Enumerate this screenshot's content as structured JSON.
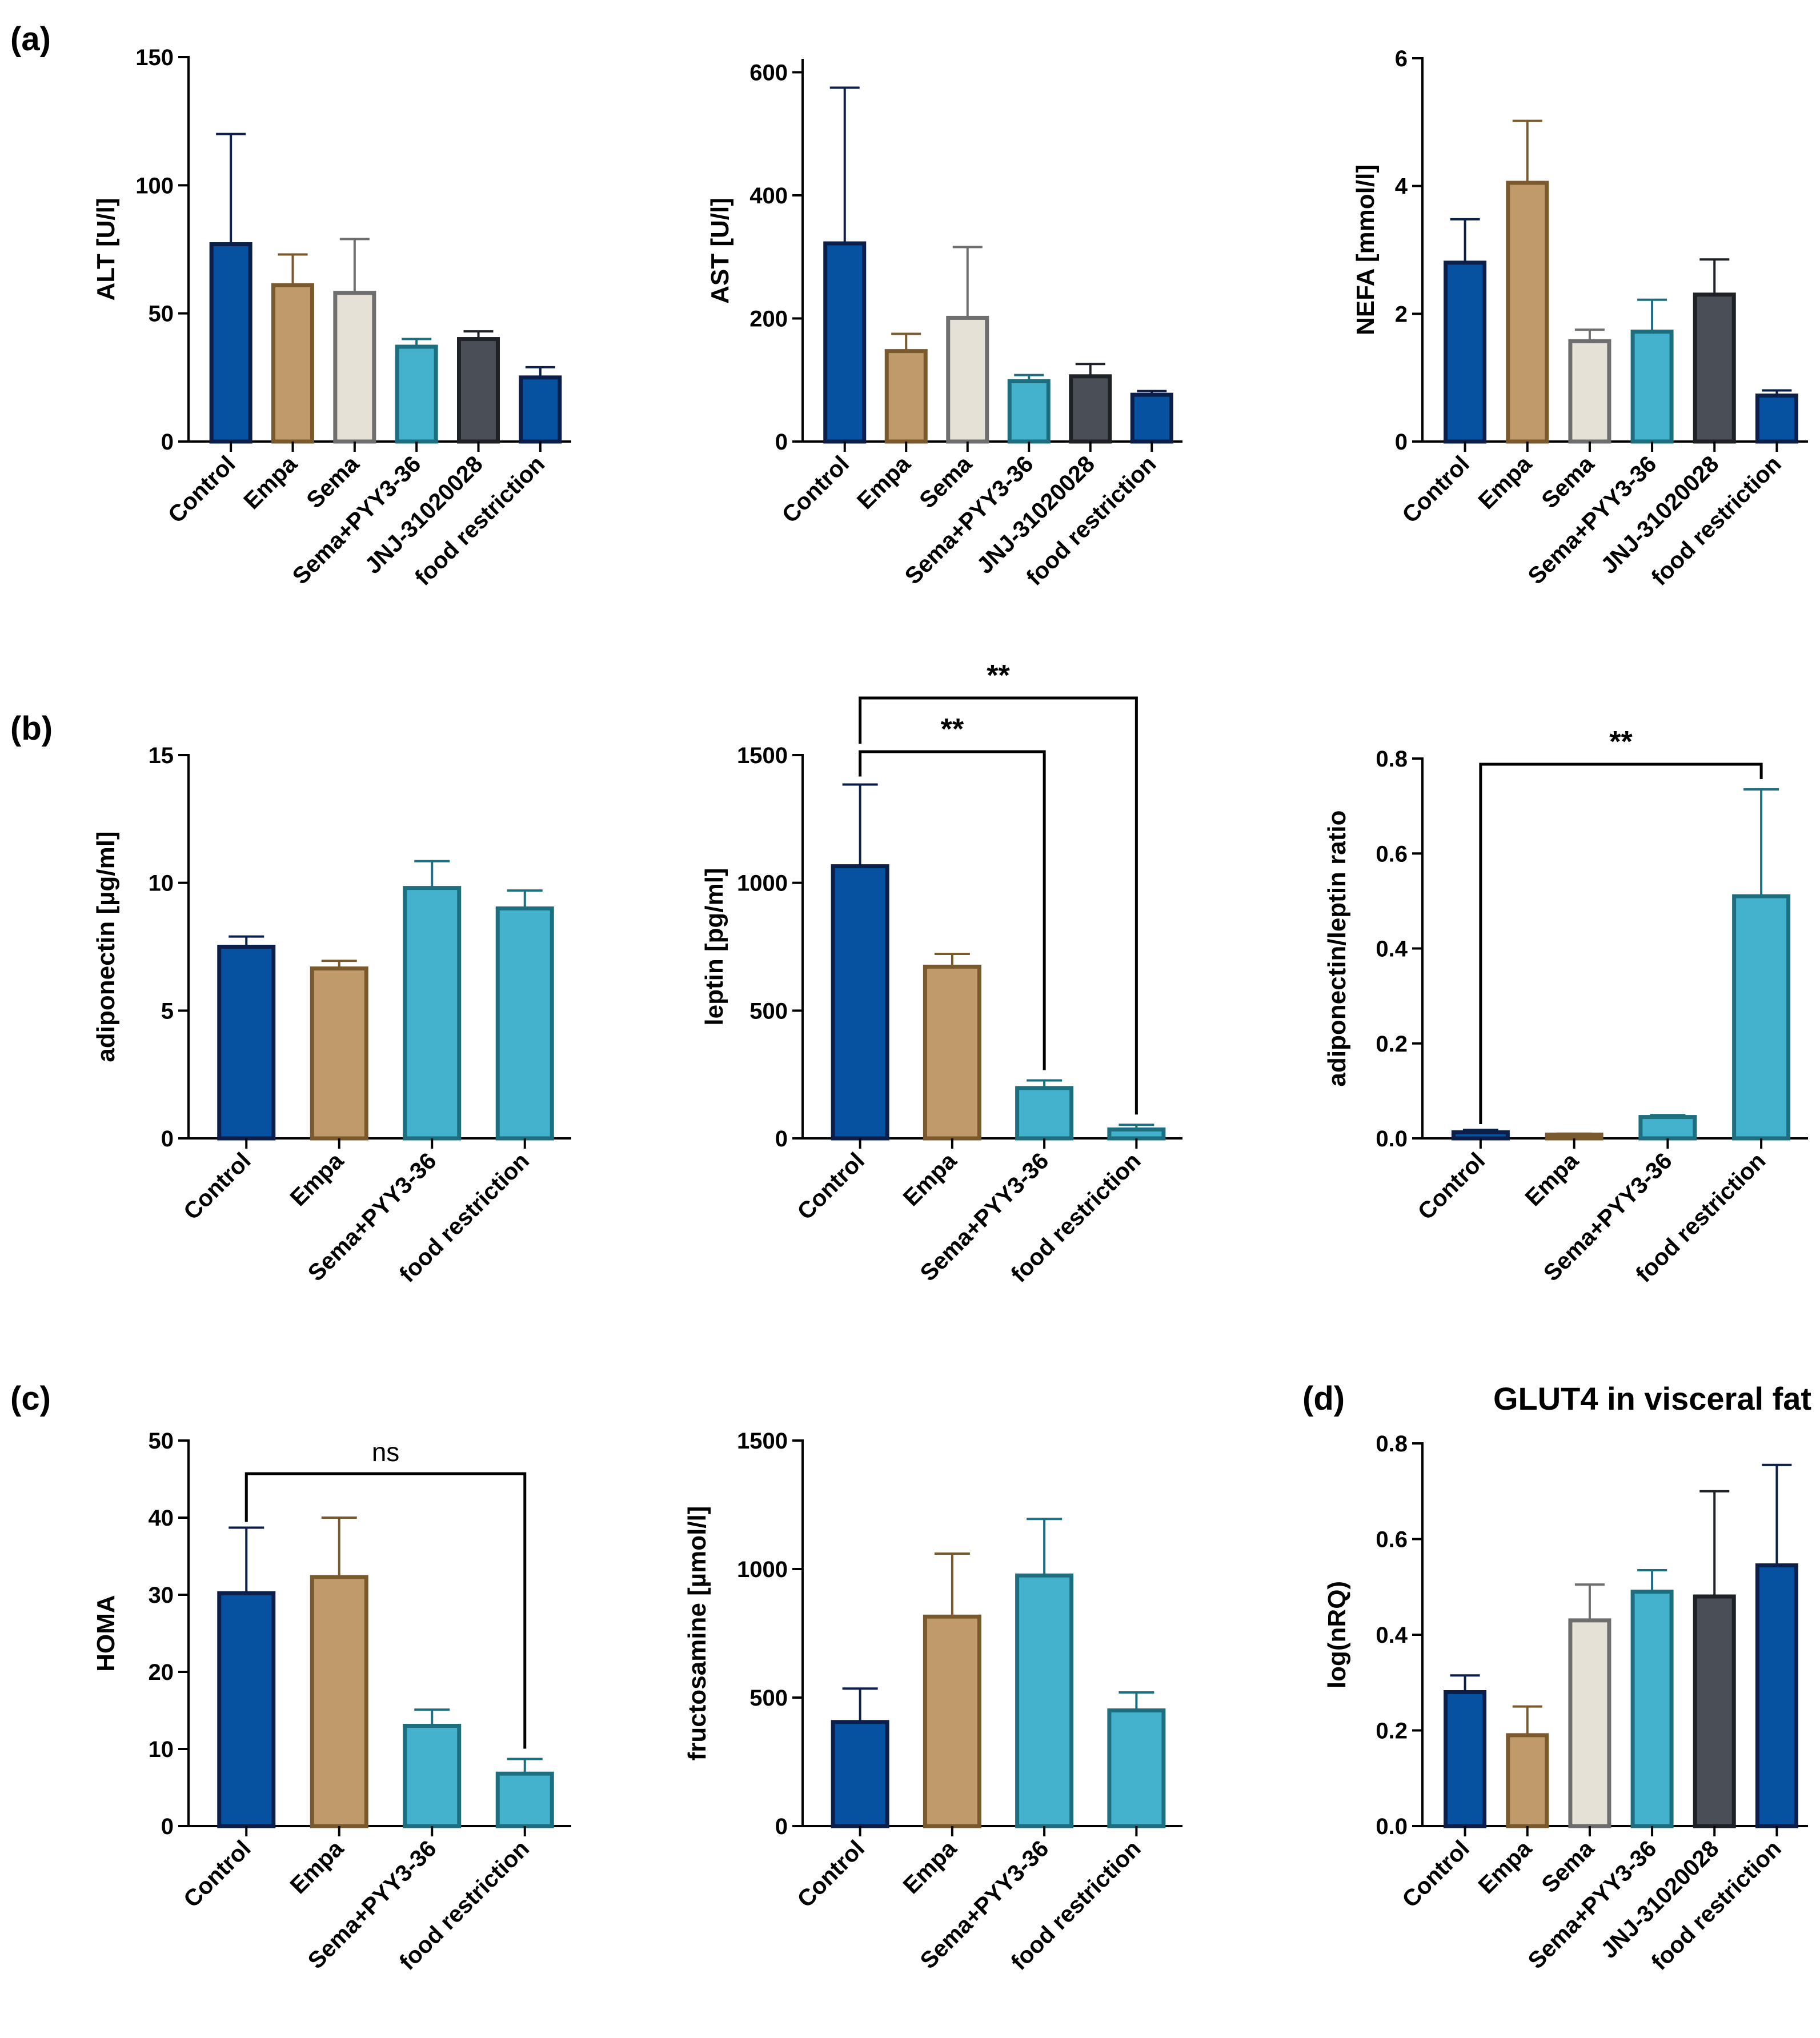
{
  "colors": {
    "Control": {
      "fill": "#0652a0",
      "stroke": "#0b1f4a"
    },
    "Empa": {
      "fill": "#c19a6b",
      "stroke": "#7a5a2c"
    },
    "Sema": {
      "fill": "#e6e1d6",
      "stroke": "#6e6e6e"
    },
    "Sema+PYY3-36": {
      "fill": "#44b2cc",
      "stroke": "#1d6f80"
    },
    "JNJ-31020028": {
      "fill": "#4a4f57",
      "stroke": "#1e2227"
    },
    "food restriction": {
      "fill": "#0652a0",
      "stroke": "#0b1f4a"
    },
    "food restriction (b,c)": {
      "fill": "#44b2cc",
      "stroke": "#1d6f80"
    }
  },
  "chart_data": [
    {
      "id": "alt",
      "panel_label": "(a)",
      "type": "bar",
      "title": "",
      "ylabel": "ALT [U/l]",
      "ylim": [
        0,
        150
      ],
      "yticks": [
        "0",
        "50",
        "100",
        "150"
      ],
      "categories": [
        "Control",
        "Empa",
        "Sema",
        "Sema+PYY3-36",
        "JNJ-31020028",
        "food restriction"
      ],
      "values": [
        77,
        61,
        58,
        37,
        40,
        25
      ],
      "errors": [
        43,
        12,
        21,
        3,
        3,
        4
      ],
      "significance": []
    },
    {
      "id": "ast",
      "panel_label": "",
      "type": "bar",
      "title": "",
      "ylabel": "AST [U/l]",
      "ylim": [
        0,
        620
      ],
      "yticks": [
        "0",
        "200",
        "400",
        "600"
      ],
      "categories": [
        "Control",
        "Empa",
        "Sema",
        "Sema+PYY3-36",
        "JNJ-31020028",
        "food restriction"
      ],
      "values": [
        322,
        147,
        201,
        98,
        106,
        76
      ],
      "errors": [
        253,
        28,
        115,
        10,
        20,
        6
      ],
      "significance": []
    },
    {
      "id": "nefa",
      "panel_label": "",
      "type": "bar",
      "title": "",
      "ylabel": "NEFA [mmol/l]",
      "ylim": [
        0,
        6
      ],
      "yticks": [
        "0",
        "2",
        "4",
        "6"
      ],
      "categories": [
        "Control",
        "Empa",
        "Sema",
        "Sema+PYY3-36",
        "JNJ-31020028",
        "food restriction"
      ],
      "values": [
        2.8,
        4.05,
        1.57,
        1.72,
        2.3,
        0.72
      ],
      "errors": [
        0.68,
        0.97,
        0.18,
        0.5,
        0.55,
        0.08
      ],
      "significance": []
    },
    {
      "id": "adiponectin",
      "panel_label": "(b)",
      "type": "bar",
      "title": "",
      "ylabel": "adiponectin [µg/ml]",
      "ylim": [
        0,
        15
      ],
      "yticks": [
        "0",
        "5",
        "10",
        "15"
      ],
      "categories": [
        "Control",
        "Empa",
        "Sema+PYY3-36",
        "food restriction"
      ],
      "values": [
        7.5,
        6.65,
        9.8,
        9.0
      ],
      "errors": [
        0.4,
        0.3,
        1.05,
        0.7
      ],
      "significance": []
    },
    {
      "id": "leptin",
      "panel_label": "",
      "type": "bar",
      "title": "",
      "ylabel": "leptin [pg/ml]",
      "ylim": [
        0,
        1500
      ],
      "yticks": [
        "0",
        "500",
        "1000",
        "1500"
      ],
      "categories": [
        "Control",
        "Empa",
        "Sema+PYY3-36",
        "food restriction"
      ],
      "values": [
        1065,
        672,
        197,
        35
      ],
      "errors": [
        320,
        50,
        30,
        18
      ],
      "significance": [
        {
          "from": 0,
          "to": 2,
          "label": "**",
          "level": 1
        },
        {
          "from": 0,
          "to": 3,
          "label": "**",
          "level": 2
        }
      ]
    },
    {
      "id": "ratio",
      "panel_label": "",
      "type": "bar",
      "title": "",
      "ylabel": "adiponectin/leptin ratio",
      "ylim": [
        0,
        0.8
      ],
      "yticks": [
        "0.0",
        "0.2",
        "0.4",
        "0.6",
        "0.8"
      ],
      "categories": [
        "Control",
        "Empa",
        "Sema+PYY3-36",
        "food restriction"
      ],
      "values": [
        0.013,
        0.008,
        0.045,
        0.51
      ],
      "errors": [
        0.005,
        0.002,
        0.004,
        0.225
      ],
      "significance": [
        {
          "from": 0,
          "to": 3,
          "label": "**",
          "level": 1
        }
      ]
    },
    {
      "id": "homa",
      "panel_label": "(c)",
      "type": "bar",
      "title": "",
      "ylabel": "HOMA",
      "ylim": [
        0,
        50
      ],
      "yticks": [
        "0",
        "10",
        "20",
        "30",
        "40",
        "50"
      ],
      "categories": [
        "Control",
        "Empa",
        "Sema+PYY3-36",
        "food restriction"
      ],
      "values": [
        30.2,
        32.3,
        13,
        6.8
      ],
      "errors": [
        8.5,
        7.7,
        2.1,
        1.9
      ],
      "significance": [
        {
          "from": 0,
          "to": 3,
          "label": "ns",
          "level": 1
        }
      ]
    },
    {
      "id": "fructosamine",
      "panel_label": "",
      "type": "bar",
      "title": "",
      "ylabel": "fructosamine [µmol/l]",
      "ylim": [
        0,
        1500
      ],
      "yticks": [
        "0",
        "500",
        "1000",
        "1500"
      ],
      "categories": [
        "Control",
        "Empa",
        "Sema+PYY3-36",
        "food restriction"
      ],
      "values": [
        405,
        815,
        975,
        450
      ],
      "errors": [
        130,
        245,
        220,
        70
      ],
      "significance": []
    },
    {
      "id": "glut4",
      "panel_label": "(d)",
      "type": "bar",
      "title": "GLUT4 in visceral fat",
      "ylabel": "log(nRQ)",
      "ylim": [
        0,
        0.8
      ],
      "yticks": [
        "0.0",
        "0.2",
        "0.4",
        "0.6",
        "0.8"
      ],
      "categories": [
        "Control",
        "Empa",
        "Sema",
        "Sema+PYY3-36",
        "JNJ-31020028",
        "food restriction"
      ],
      "values": [
        0.28,
        0.19,
        0.43,
        0.49,
        0.48,
        0.545
      ],
      "errors": [
        0.035,
        0.06,
        0.075,
        0.045,
        0.22,
        0.21
      ],
      "significance": []
    }
  ]
}
